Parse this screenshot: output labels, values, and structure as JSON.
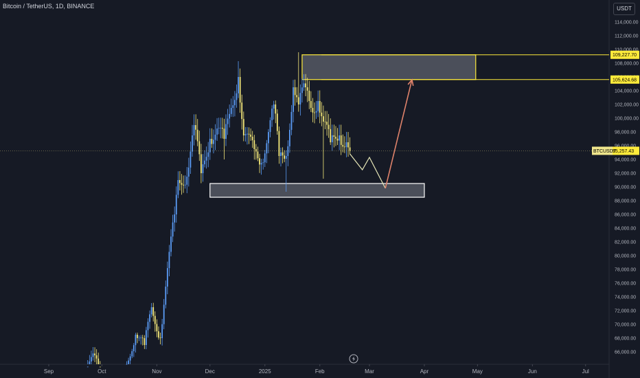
{
  "header": {
    "title": "Bitcoin / TetherUS, 1D, BINANCE"
  },
  "axis": {
    "currency": "USDT"
  },
  "colors": {
    "background": "#161a25",
    "up_candle": "#5b9cf6",
    "down_candle": "#f5e97a",
    "zone_border": "#ffffff",
    "resistance_line": "#ffeb3b",
    "projection_path": "#e8e8b8",
    "projection_arrow": "#e0836b",
    "price_line": "#f0e68c"
  },
  "chart_data": {
    "type": "candlestick",
    "symbol": "BTCUSDT",
    "ylim": [
      64000,
      116000
    ],
    "y_ticks": [
      {
        "value": 66000,
        "label": "66,000.00"
      },
      {
        "value": 68000,
        "label": "68,000.00"
      },
      {
        "value": 70000,
        "label": "70,000.00"
      },
      {
        "value": 72000,
        "label": "72,000.00"
      },
      {
        "value": 74000,
        "label": "74,000.00"
      },
      {
        "value": 76000,
        "label": "76,000.00"
      },
      {
        "value": 78000,
        "label": "78,000.00"
      },
      {
        "value": 80000,
        "label": "80,000.00"
      },
      {
        "value": 82000,
        "label": "82,000.00"
      },
      {
        "value": 84000,
        "label": "84,000.00"
      },
      {
        "value": 86000,
        "label": "86,000.00"
      },
      {
        "value": 88000,
        "label": "88,000.00"
      },
      {
        "value": 90000,
        "label": "90,000.00"
      },
      {
        "value": 92000,
        "label": "92,000.00"
      },
      {
        "value": 94000,
        "label": "94,000.00"
      },
      {
        "value": 96000,
        "label": "96,000.00"
      },
      {
        "value": 98000,
        "label": "98,000.00"
      },
      {
        "value": 100000,
        "label": "100,000.00"
      },
      {
        "value": 102000,
        "label": "102,000.00"
      },
      {
        "value": 104000,
        "label": "104,000.00"
      },
      {
        "value": 106000,
        "label": "106,000.00"
      },
      {
        "value": 108000,
        "label": "108,000.00"
      },
      {
        "value": 110000,
        "label": "110,000.00"
      },
      {
        "value": 112000,
        "label": "112,000.00"
      },
      {
        "value": 114000,
        "label": "114,000.00"
      }
    ],
    "x_ticks": [
      {
        "date": "2024-09-01",
        "label": "Sep"
      },
      {
        "date": "2024-10-01",
        "label": "Oct"
      },
      {
        "date": "2024-11-01",
        "label": "Nov"
      },
      {
        "date": "2024-12-01",
        "label": "Dec"
      },
      {
        "date": "2025-01-01",
        "label": "2025"
      },
      {
        "date": "2025-02-01",
        "label": "Feb"
      },
      {
        "date": "2025-03-01",
        "label": "Mar"
      },
      {
        "date": "2025-04-01",
        "label": "Apr"
      },
      {
        "date": "2025-05-01",
        "label": "May"
      },
      {
        "date": "2025-06-01",
        "label": "Jun"
      },
      {
        "date": "2025-07-01",
        "label": "Jul"
      }
    ],
    "anchors": [
      {
        "date": "2024-08-30",
        "close": 59000
      },
      {
        "date": "2024-09-06",
        "close": 60000
      },
      {
        "date": "2024-09-18",
        "close": 61000
      },
      {
        "date": "2024-09-27",
        "close": 65500
      },
      {
        "date": "2024-10-01",
        "close": 62000
      },
      {
        "date": "2024-10-10",
        "close": 60500
      },
      {
        "date": "2024-10-20",
        "close": 68500
      },
      {
        "date": "2024-10-25",
        "close": 67000
      },
      {
        "date": "2024-10-29",
        "close": 72500
      },
      {
        "date": "2024-11-03",
        "close": 68000
      },
      {
        "date": "2024-11-06",
        "close": 75500
      },
      {
        "date": "2024-11-11",
        "close": 86000
      },
      {
        "date": "2024-11-13",
        "close": 91000
      },
      {
        "date": "2024-11-18",
        "close": 91500
      },
      {
        "date": "2024-11-22",
        "close": 99000
      },
      {
        "date": "2024-11-26",
        "close": 92000
      },
      {
        "date": "2024-12-01",
        "close": 97000
      },
      {
        "date": "2024-12-05",
        "close": 98500
      },
      {
        "date": "2024-12-09",
        "close": 97000
      },
      {
        "date": "2024-12-13",
        "close": 101500
      },
      {
        "date": "2024-12-17",
        "close": 106000
      },
      {
        "date": "2024-12-20",
        "close": 97500
      },
      {
        "date": "2024-12-26",
        "close": 95500
      },
      {
        "date": "2024-12-30",
        "close": 93500
      },
      {
        "date": "2025-01-06",
        "close": 102000
      },
      {
        "date": "2025-01-09",
        "close": 94500
      },
      {
        "date": "2025-01-13",
        "close": 94500
      },
      {
        "date": "2025-01-17",
        "close": 104500
      },
      {
        "date": "2025-01-20",
        "close": 102000
      },
      {
        "date": "2025-01-24",
        "close": 104500
      },
      {
        "date": "2025-01-27",
        "close": 101500
      },
      {
        "date": "2025-01-31",
        "close": 102500
      },
      {
        "date": "2025-02-03",
        "close": 99500
      },
      {
        "date": "2025-02-07",
        "close": 96500
      },
      {
        "date": "2025-02-12",
        "close": 97500
      },
      {
        "date": "2025-02-16",
        "close": 96500
      },
      {
        "date": "2025-02-18",
        "close": 95257.43
      }
    ],
    "notable_wicks": [
      {
        "date": "2024-12-17",
        "high": 108300
      },
      {
        "date": "2025-01-20",
        "high": 109600
      },
      {
        "date": "2024-12-09",
        "low": 94000
      },
      {
        "date": "2025-01-13",
        "low": 89300
      },
      {
        "date": "2025-02-03",
        "low": 91200
      }
    ],
    "current_price": {
      "value": 95257.43,
      "label": "95,257.43",
      "symbol_label": "BTCUSDT"
    },
    "resistance_zone": {
      "start": "2025-01-22",
      "end": "2025-04-30",
      "top": 109227.7,
      "bottom": 105624.68,
      "top_label": "109,227.70",
      "bottom_label": "105,624.68"
    },
    "support_zone": {
      "start": "2024-12-01",
      "end": "2025-04-01",
      "top": 90500,
      "bottom": 88500
    },
    "projection": [
      {
        "date": "2025-02-18",
        "price": 94800
      },
      {
        "date": "2025-02-25",
        "price": 92500
      },
      {
        "date": "2025-03-01",
        "price": 94300
      },
      {
        "date": "2025-03-10",
        "price": 89800
      }
    ],
    "projection_arrow": {
      "from": {
        "date": "2025-03-10",
        "price": 89800
      },
      "to": {
        "date": "2025-03-25",
        "price": 105600
      }
    }
  }
}
